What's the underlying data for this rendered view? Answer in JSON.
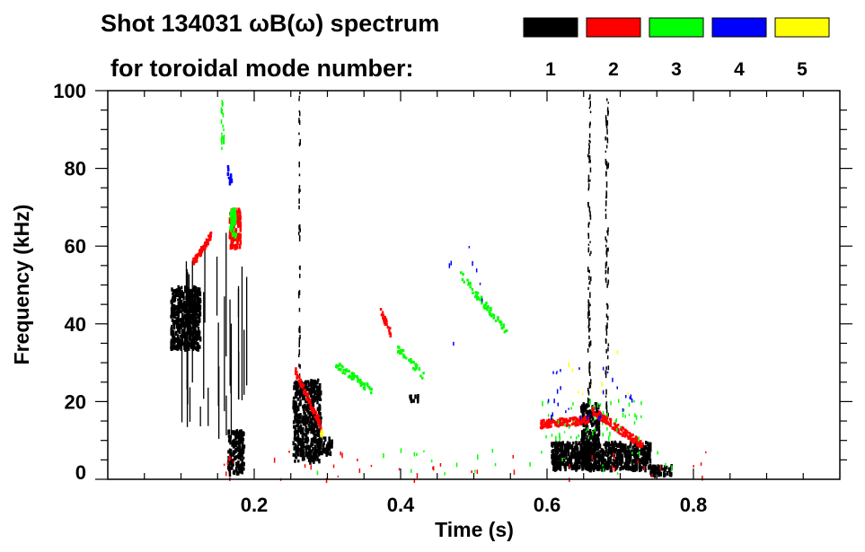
{
  "chart_data": {
    "type": "heatmap",
    "title_line1": "Shot 134031 ωB(ω) spectrum",
    "title_line2": "for toroidal mode number:",
    "xlabel": "Time (s)",
    "ylabel": "Frequency (kHz)",
    "xlim": [
      0,
      1.0
    ],
    "ylim": [
      0,
      100
    ],
    "xticks": [
      0.2,
      0.4,
      0.6,
      0.8
    ],
    "xtick_labels": [
      "0.2",
      "0.4",
      "0.6",
      "0.8"
    ],
    "yticks": [
      0,
      20,
      40,
      60,
      80,
      100
    ],
    "ytick_labels": [
      "0",
      "20",
      "40",
      "60",
      "80",
      "100"
    ],
    "legend": [
      {
        "mode": "1",
        "color": "#000000"
      },
      {
        "mode": "2",
        "color": "#ff0000"
      },
      {
        "mode": "3",
        "color": "#00ff00"
      },
      {
        "mode": "4",
        "color": "#0000ff"
      },
      {
        "mode": "5",
        "color": "#ffff00"
      }
    ],
    "features": [
      {
        "mode": 1,
        "kind": "blob",
        "t": [
          0.085,
          0.125
        ],
        "f": [
          34,
          50
        ],
        "n": 500
      },
      {
        "mode": 1,
        "kind": "streaks",
        "t": [
          0.095,
          0.19
        ],
        "f": [
          10,
          66
        ],
        "n": 30
      },
      {
        "mode": 1,
        "kind": "blob",
        "t": [
          0.163,
          0.185
        ],
        "f": [
          2,
          13
        ],
        "n": 160
      },
      {
        "mode": 1,
        "kind": "blob",
        "t": [
          0.252,
          0.29
        ],
        "f": [
          5,
          26
        ],
        "n": 450
      },
      {
        "mode": 1,
        "kind": "blob",
        "t": [
          0.285,
          0.305
        ],
        "f": [
          7,
          11
        ],
        "n": 50
      },
      {
        "mode": 1,
        "kind": "vline",
        "t": [
          0.26,
          0.262
        ],
        "f": [
          25,
          100
        ],
        "n": 45
      },
      {
        "mode": 1,
        "kind": "blob",
        "t": [
          0.605,
          0.74
        ],
        "f": [
          3,
          10
        ],
        "n": 700
      },
      {
        "mode": 1,
        "kind": "blob",
        "t": [
          0.645,
          0.67
        ],
        "f": [
          3,
          20
        ],
        "n": 250
      },
      {
        "mode": 1,
        "kind": "blob",
        "t": [
          0.74,
          0.77
        ],
        "f": [
          1.5,
          4
        ],
        "n": 60
      },
      {
        "mode": 1,
        "kind": "vline",
        "t": [
          0.655,
          0.659
        ],
        "f": [
          18,
          100
        ],
        "n": 90
      },
      {
        "mode": 1,
        "kind": "vline",
        "t": [
          0.679,
          0.683
        ],
        "f": [
          15,
          100
        ],
        "n": 90
      },
      {
        "mode": 1,
        "kind": "blob",
        "t": [
          0.41,
          0.425
        ],
        "f": [
          20,
          22
        ],
        "n": 10
      },
      {
        "mode": 2,
        "kind": "line",
        "t": [
          0.115,
          0.14
        ],
        "f": [
          56,
          63
        ],
        "n": 80
      },
      {
        "mode": 2,
        "kind": "blob",
        "t": [
          0.165,
          0.18
        ],
        "f": [
          60,
          70
        ],
        "n": 120
      },
      {
        "mode": 2,
        "kind": "line",
        "t": [
          0.255,
          0.29
        ],
        "f": [
          28,
          14
        ],
        "n": 90
      },
      {
        "mode": 2,
        "kind": "line",
        "t": [
          0.37,
          0.385
        ],
        "f": [
          44,
          38
        ],
        "n": 30
      },
      {
        "mode": 2,
        "kind": "line",
        "t": [
          0.59,
          0.655
        ],
        "f": [
          14.5,
          15.5
        ],
        "n": 160
      },
      {
        "mode": 2,
        "kind": "line",
        "t": [
          0.66,
          0.73
        ],
        "f": [
          18,
          9
        ],
        "n": 150
      },
      {
        "mode": 2,
        "kind": "scatter",
        "t": [
          0.15,
          0.82
        ],
        "f": [
          0,
          8
        ],
        "n": 45
      },
      {
        "mode": 3,
        "kind": "vline",
        "t": [
          0.154,
          0.158
        ],
        "f": [
          85,
          98
        ],
        "n": 20
      },
      {
        "mode": 3,
        "kind": "blob",
        "t": [
          0.166,
          0.174
        ],
        "f": [
          63,
          70
        ],
        "n": 40
      },
      {
        "mode": 3,
        "kind": "line",
        "t": [
          0.31,
          0.36
        ],
        "f": [
          30,
          23
        ],
        "n": 60
      },
      {
        "mode": 3,
        "kind": "line",
        "t": [
          0.395,
          0.43
        ],
        "f": [
          34,
          27
        ],
        "n": 40
      },
      {
        "mode": 3,
        "kind": "line",
        "t": [
          0.48,
          0.545
        ],
        "f": [
          53,
          38
        ],
        "n": 60
      },
      {
        "mode": 3,
        "kind": "scatter",
        "t": [
          0.59,
          0.73
        ],
        "f": [
          11,
          21
        ],
        "n": 55
      },
      {
        "mode": 3,
        "kind": "scatter",
        "t": [
          0.26,
          0.8
        ],
        "f": [
          1,
          8
        ],
        "n": 25
      },
      {
        "mode": 4,
        "kind": "scatter",
        "t": [
          0.6,
          0.72
        ],
        "f": [
          15,
          30
        ],
        "n": 30
      },
      {
        "mode": 4,
        "kind": "scatter",
        "t": [
          0.45,
          0.52
        ],
        "f": [
          33,
          62
        ],
        "n": 8
      },
      {
        "mode": 4,
        "kind": "blob",
        "t": [
          0.162,
          0.168
        ],
        "f": [
          76,
          82
        ],
        "n": 10
      },
      {
        "mode": 5,
        "kind": "blob",
        "t": [
          0.289,
          0.292
        ],
        "f": [
          11,
          13
        ],
        "n": 6
      },
      {
        "mode": 5,
        "kind": "scatter",
        "t": [
          0.62,
          0.71
        ],
        "f": [
          20,
          34
        ],
        "n": 8
      }
    ]
  }
}
